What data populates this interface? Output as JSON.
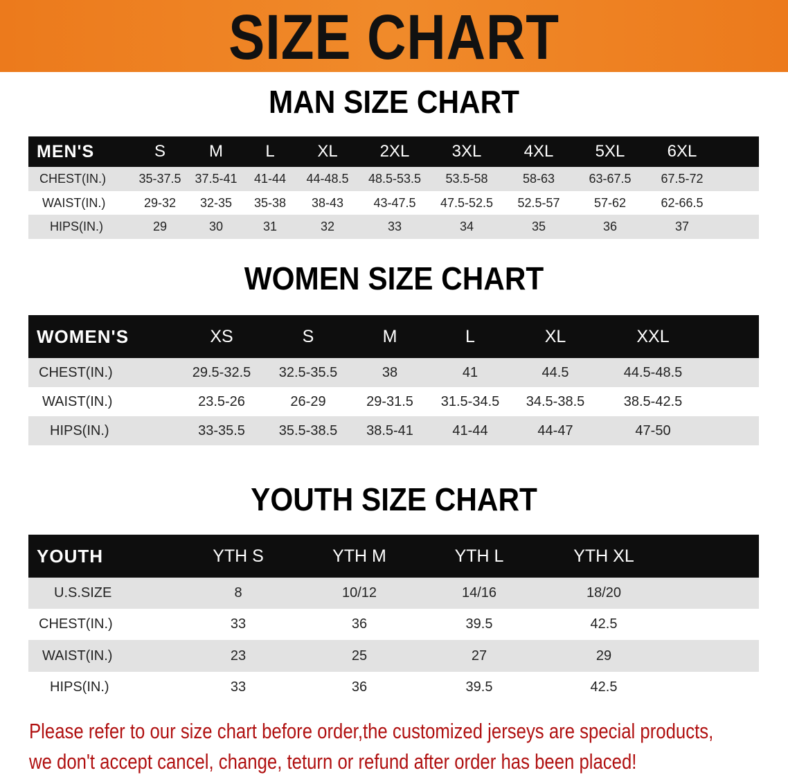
{
  "banner_title": "SIZE CHART",
  "men": {
    "title": "MAN SIZE CHART",
    "headers": [
      "MEN'S",
      "S",
      "M",
      "L",
      "XL",
      "2XL",
      "3XL",
      "4XL",
      "5XL",
      "6XL"
    ],
    "rows": [
      [
        "CHEST(IN.)",
        "35-37.5",
        "37.5-41",
        "41-44",
        "44-48.5",
        "48.5-53.5",
        "53.5-58",
        "58-63",
        "63-67.5",
        "67.5-72"
      ],
      [
        "WAIST(IN.)",
        "29-32",
        "32-35",
        "35-38",
        "38-43",
        "43-47.5",
        "47.5-52.5",
        "52.5-57",
        "57-62",
        "62-66.5"
      ],
      [
        "HIPS(IN.)",
        "29",
        "30",
        "31",
        "32",
        "33",
        "34",
        "35",
        "36",
        "37"
      ]
    ]
  },
  "women": {
    "title": "WOMEN SIZE CHART",
    "headers": [
      "WOMEN'S",
      "XS",
      "S",
      "M",
      "L",
      "XL",
      "XXL"
    ],
    "rows": [
      [
        "CHEST(IN.)",
        "29.5-32.5",
        "32.5-35.5",
        "38",
        "41",
        "44.5",
        "44.5-48.5"
      ],
      [
        "WAIST(IN.)",
        "23.5-26",
        "26-29",
        "29-31.5",
        "31.5-34.5",
        "34.5-38.5",
        "38.5-42.5"
      ],
      [
        "HIPS(IN.)",
        "33-35.5",
        "35.5-38.5",
        "38.5-41",
        "41-44",
        "44-47",
        "47-50"
      ]
    ]
  },
  "youth": {
    "title": "YOUTH SIZE CHART",
    "headers": [
      "YOUTH",
      "YTH S",
      "YTH M",
      "YTH L",
      "YTH XL"
    ],
    "rows": [
      [
        "U.S.SIZE",
        "8",
        "10/12",
        "14/16",
        "18/20"
      ],
      [
        "CHEST(IN.)",
        "33",
        "36",
        "39.5",
        "42.5"
      ],
      [
        "WAIST(IN.)",
        "23",
        "25",
        "27",
        "29"
      ],
      [
        "HIPS(IN.)",
        "33",
        "36",
        "39.5",
        "42.5"
      ]
    ]
  },
  "note": {
    "line1": "Please refer to our size chart before order,the customized jerseys are special products,",
    "line2": "we don't accept cancel, change, teturn or refund after order has been placed!"
  },
  "colors": {
    "banner": "#ec7a1c",
    "header_bg": "#0e0e0e",
    "row_alt": "#e2e2e2",
    "note": "#b01010"
  }
}
